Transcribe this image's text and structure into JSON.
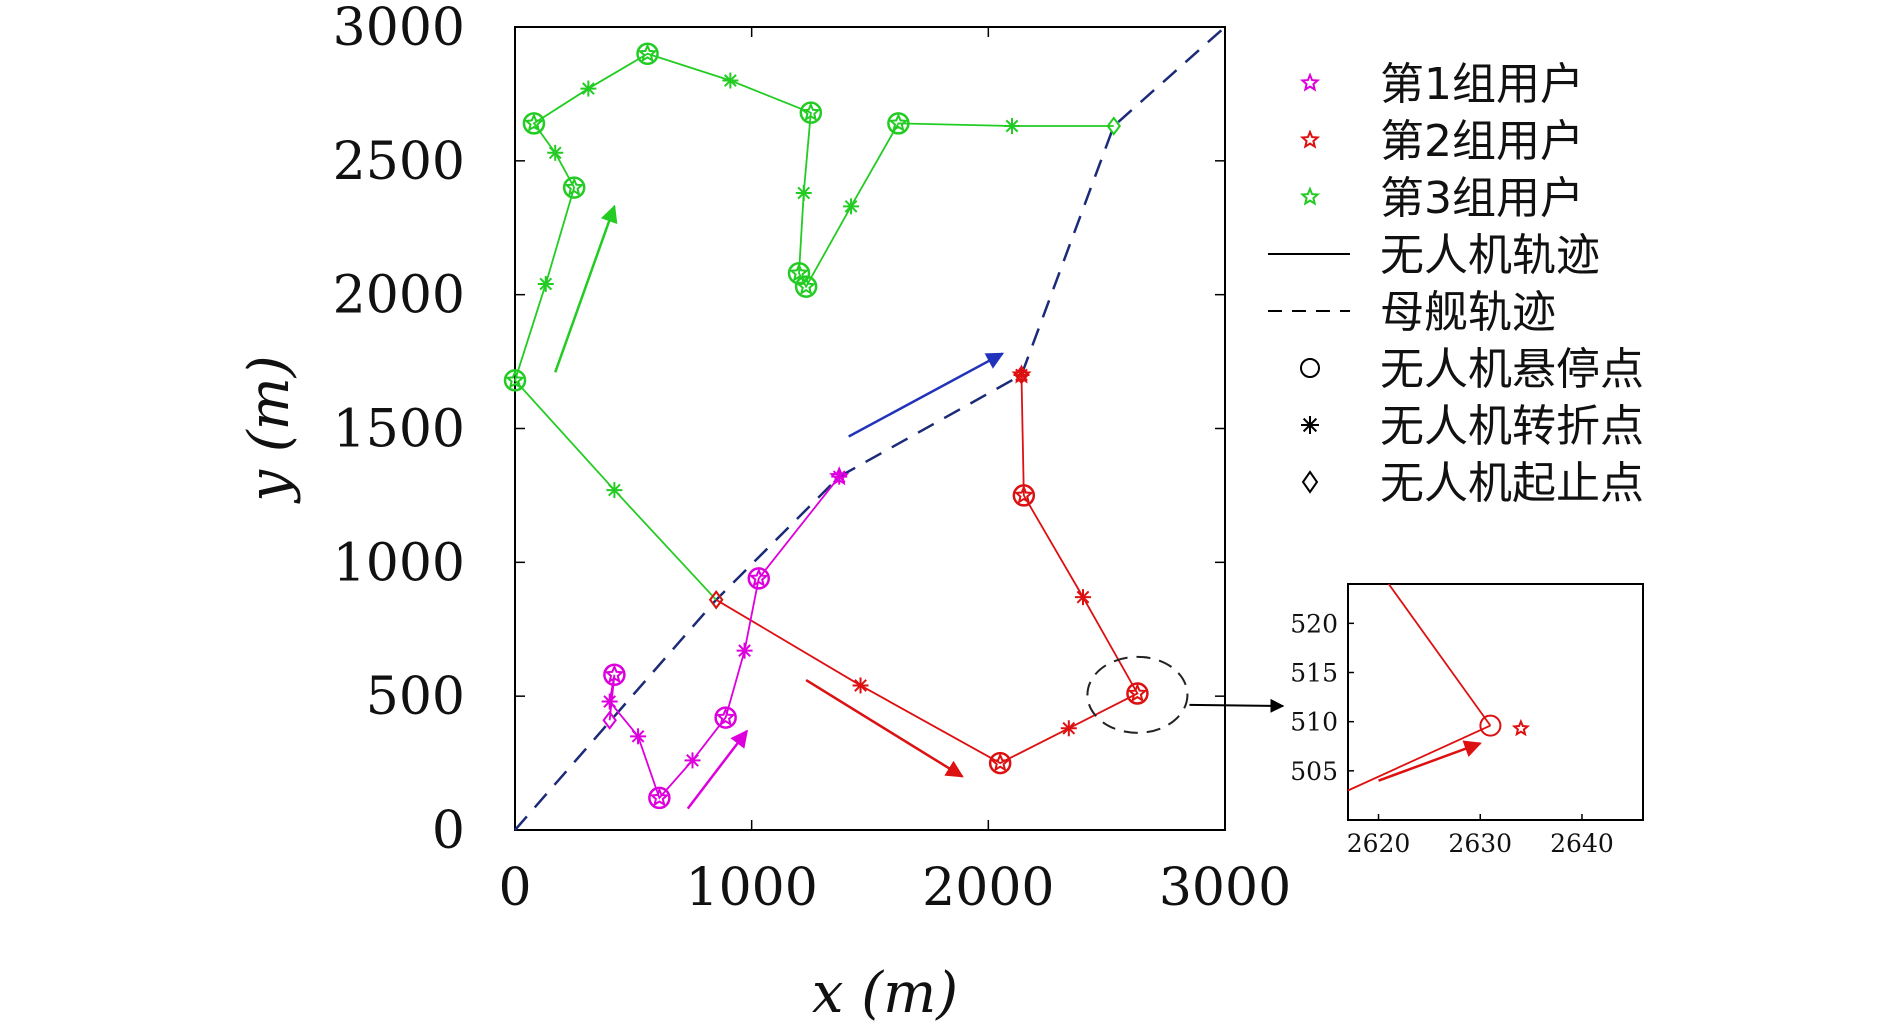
{
  "chart_data": [
    {
      "type": "scatter",
      "xlabel": "x (m)",
      "ylabel": "y (m)",
      "xlim": [
        0,
        3000
      ],
      "ylim": [
        0,
        3000
      ],
      "x_ticks": [
        "0",
        "1000",
        "2000",
        "3000"
      ],
      "y_ticks": [
        "0",
        "500",
        "1000",
        "1500",
        "2000",
        "2500",
        "3000"
      ],
      "grid": false,
      "legend_position": "right",
      "legend": [
        {
          "label": "第1组用户",
          "marker": "star",
          "color": "#dd00dd"
        },
        {
          "label": "第2组用户",
          "marker": "star",
          "color": "#dd1111"
        },
        {
          "label": "第3组用户",
          "marker": "star",
          "color": "#22cc22"
        },
        {
          "label": "无人机轨迹",
          "marker": "solid-line",
          "color": "#000000"
        },
        {
          "label": "母舰轨迹",
          "marker": "dashed-line",
          "color": "#000000"
        },
        {
          "label": "无人机悬停点",
          "marker": "circle",
          "color": "#000000"
        },
        {
          "label": "无人机转折点",
          "marker": "asterisk",
          "color": "#000000"
        },
        {
          "label": "无人机起止点",
          "marker": "diamond",
          "color": "#000000"
        }
      ],
      "series": [
        {
          "color": "#22cc22",
          "hover_points": [
            [
              0,
              1680
            ],
            [
              80,
              2640
            ],
            [
              250,
              2400
            ],
            [
              560,
              2900
            ],
            [
              1250,
              2680
            ],
            [
              1620,
              2640
            ],
            [
              1200,
              2080
            ],
            [
              1230,
              2030
            ]
          ],
          "turn_points": [
            [
              130,
              2040
            ],
            [
              170,
              2530
            ],
            [
              310,
              2770
            ],
            [
              910,
              2800
            ],
            [
              1220,
              2380
            ],
            [
              1420,
              2330
            ],
            [
              2100,
              2630
            ],
            [
              420,
              1270
            ]
          ],
          "start_end": [
            [
              2530,
              2630
            ],
            [
              850,
              860
            ]
          ],
          "users": [
            [
              0,
              1680
            ],
            [
              80,
              2640
            ],
            [
              250,
              2400
            ],
            [
              560,
              2900
            ],
            [
              1250,
              2680
            ],
            [
              1620,
              2640
            ],
            [
              1200,
              2080
            ],
            [
              1230,
              2030
            ]
          ],
          "path": [
            [
              2530,
              2630
            ],
            [
              2100,
              2630
            ],
            [
              1620,
              2640
            ],
            [
              1420,
              2330
            ],
            [
              1230,
              2030
            ],
            [
              1200,
              2080
            ],
            [
              1220,
              2380
            ],
            [
              1250,
              2680
            ],
            [
              910,
              2800
            ],
            [
              560,
              2900
            ],
            [
              310,
              2770
            ],
            [
              80,
              2640
            ],
            [
              170,
              2530
            ],
            [
              250,
              2400
            ],
            [
              130,
              2040
            ],
            [
              0,
              1680
            ],
            [
              420,
              1270
            ],
            [
              850,
              860
            ]
          ]
        },
        {
          "color": "#dd1111",
          "hover_points": [
            [
              2150,
              1250
            ],
            [
              2630,
              510
            ],
            [
              2050,
              250
            ]
          ],
          "turn_points": [
            [
              2140,
              1700
            ],
            [
              2400,
              870
            ],
            [
              2340,
              380
            ],
            [
              1460,
              540
            ]
          ],
          "start_end": [
            [
              850,
              860
            ],
            [
              2140,
              1700
            ]
          ],
          "users": [
            [
              2150,
              1250
            ],
            [
              2630,
              510
            ],
            [
              2050,
              250
            ],
            [
              2140,
              1700
            ]
          ],
          "path": [
            [
              2140,
              1700
            ],
            [
              2150,
              1250
            ],
            [
              2400,
              870
            ],
            [
              2630,
              510
            ],
            [
              2340,
              380
            ],
            [
              2050,
              250
            ],
            [
              1460,
              540
            ],
            [
              850,
              860
            ]
          ]
        },
        {
          "color": "#dd00dd",
          "hover_points": [
            [
              420,
              580
            ],
            [
              610,
              120
            ],
            [
              890,
              420
            ],
            [
              1030,
              940
            ]
          ],
          "turn_points": [
            [
              400,
              480
            ],
            [
              520,
              350
            ],
            [
              750,
              260
            ],
            [
              970,
              670
            ],
            [
              1370,
              1320
            ]
          ],
          "start_end": [
            [
              400,
              410
            ]
          ],
          "users": [
            [
              420,
              580
            ],
            [
              610,
              120
            ],
            [
              890,
              420
            ],
            [
              1030,
              940
            ],
            [
              1370,
              1320
            ]
          ],
          "path": [
            [
              400,
              410
            ],
            [
              420,
              580
            ],
            [
              400,
              480
            ],
            [
              520,
              350
            ],
            [
              610,
              120
            ],
            [
              750,
              260
            ],
            [
              890,
              420
            ],
            [
              970,
              670
            ],
            [
              1030,
              940
            ],
            [
              1370,
              1320
            ]
          ]
        }
      ],
      "mothership_path": [
        [
          0,
          0
        ],
        [
          850,
          860
        ],
        [
          1370,
          1320
        ],
        [
          2140,
          1700
        ],
        [
          2530,
          2630
        ],
        [
          3000,
          3000
        ]
      ],
      "direction_arrows": [
        {
          "color": "#22cc22",
          "from": [
            170,
            1710
          ],
          "to": [
            420,
            2330
          ]
        },
        {
          "color": "#2233bb",
          "from": [
            1410,
            1470
          ],
          "to": [
            2060,
            1780
          ]
        },
        {
          "color": "#dd00dd",
          "from": [
            730,
            80
          ],
          "to": [
            980,
            370
          ]
        },
        {
          "color": "#dd1111",
          "from": [
            1230,
            560
          ],
          "to": [
            1890,
            200
          ]
        }
      ]
    },
    {
      "type": "scatter",
      "xlim": [
        2617,
        2646
      ],
      "ylim": [
        500,
        524
      ],
      "x_ticks": [
        "2620",
        "2630",
        "2640"
      ],
      "y_ticks": [
        "505",
        "510",
        "515",
        "520"
      ],
      "grid": false,
      "elements": {
        "path_in": [
          [
            2621,
            524
          ],
          [
            2631,
            509.6
          ]
        ],
        "path_out": [
          [
            2617,
            503
          ],
          [
            2631,
            509.6
          ]
        ],
        "hover_point": [
          2631,
          509.6
        ],
        "user": [
          2634,
          509.3
        ],
        "arrow": {
          "from": [
            2620,
            504
          ],
          "to": [
            2630,
            507.8
          ]
        }
      }
    }
  ]
}
